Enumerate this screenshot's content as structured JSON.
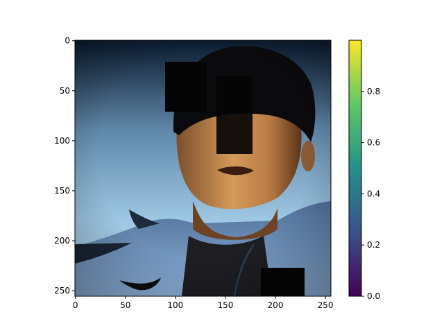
{
  "figure": {
    "background": "#ffffff",
    "image": {
      "description_free": true,
      "x_range": [
        0,
        255
      ],
      "y_range": [
        0,
        255
      ],
      "occlusions": 3
    },
    "x_axis": {
      "ticks": [
        0,
        50,
        100,
        150,
        200,
        250
      ],
      "tick_labels": [
        "0",
        "50",
        "100",
        "150",
        "200",
        "250"
      ]
    },
    "y_axis": {
      "ticks": [
        0,
        50,
        100,
        150,
        200,
        250
      ],
      "tick_labels": [
        "0",
        "50",
        "100",
        "150",
        "200",
        "250"
      ],
      "inverted": true
    },
    "colorbar": {
      "colormap": "viridis",
      "range": [
        0.0,
        1.0
      ],
      "ticks": [
        0.0,
        0.2,
        0.4,
        0.6,
        0.8
      ],
      "tick_labels": [
        "0.0",
        "0.2",
        "0.4",
        "0.6",
        "0.8"
      ],
      "colors": [
        "#440154",
        "#3b528b",
        "#21918c",
        "#5ec962",
        "#fde725"
      ]
    }
  }
}
